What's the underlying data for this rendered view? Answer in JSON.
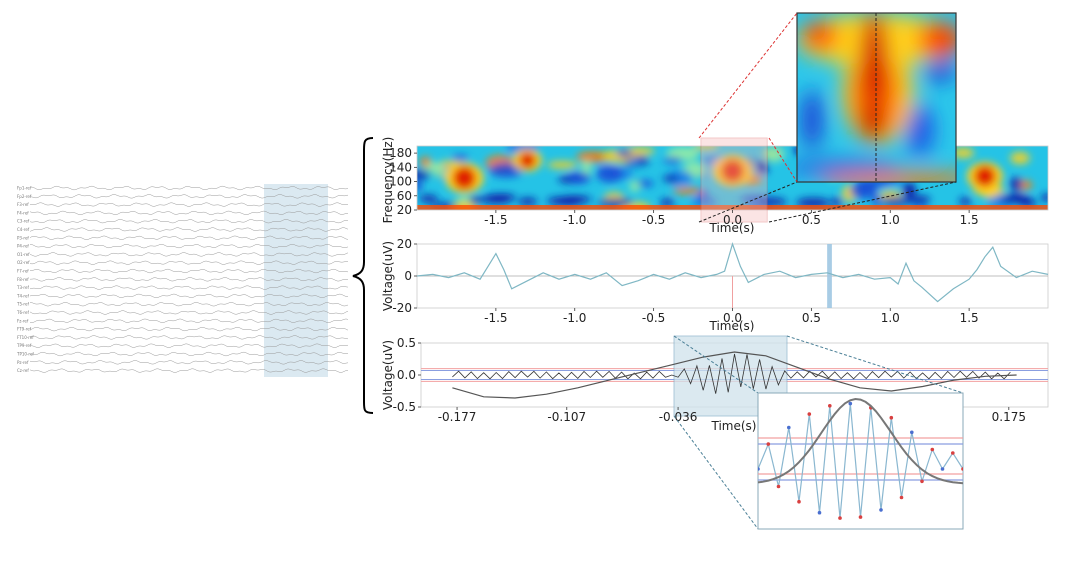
{
  "eeg_montage": {
    "channels": [
      "Fp1-ref",
      "Fp2-ref",
      "F3-ref",
      "F4-ref",
      "C3-ref",
      "C4-ref",
      "P3-ref",
      "P4-ref",
      "O1-ref",
      "O2-ref",
      "F7-ref",
      "F8-ref",
      "T3-ref",
      "T4-ref",
      "T5-ref",
      "T6-ref",
      "Fz-ref",
      "FT9-ref",
      "FT10-ref",
      "TP9-ref",
      "TP10-ref",
      "Pz-ref",
      "Cz-ref"
    ]
  },
  "chart_data": [
    {
      "type": "heatmap",
      "title": "",
      "xlabel": "Time(s)",
      "ylabel": "Frequency(Hz)",
      "xlim": [
        -2.0,
        2.0
      ],
      "ylim": [
        20,
        200
      ],
      "xticks": [
        -1.5,
        -1.0,
        -0.5,
        0.0,
        0.5,
        1.0,
        1.5
      ],
      "xtick_labels": [
        "-1.5",
        "-1.0",
        "-0.5",
        "0.0",
        "0.5",
        "1.0",
        "1.5"
      ],
      "yticks": [
        20,
        60,
        100,
        140,
        180
      ],
      "ytick_labels": [
        "20",
        "60",
        "100",
        "140",
        "180"
      ],
      "colormap": "jet",
      "hotspots": [
        {
          "t": -1.7,
          "f": 110,
          "amp": 0.95
        },
        {
          "t": 0.0,
          "f": 130,
          "amp": 1.0
        },
        {
          "t": 1.6,
          "f": 115,
          "amp": 0.85
        },
        {
          "t": -1.3,
          "f": 160,
          "amp": 0.6
        },
        {
          "t": 0.9,
          "f": 170,
          "amp": 0.55
        }
      ],
      "highlight_window": [
        -0.2,
        0.22
      ]
    },
    {
      "type": "line",
      "title": "",
      "xlabel": "Time(s)",
      "ylabel": "Voltage(uV)",
      "xlim": [
        -2.0,
        2.0
      ],
      "ylim": [
        -20,
        20
      ],
      "xticks": [
        -1.5,
        -1.0,
        -0.5,
        0.0,
        0.5,
        1.0,
        1.5
      ],
      "xtick_labels": [
        "-1.5",
        "-1.0",
        "-0.5",
        "0.0",
        "0.5",
        "1.0",
        "1.5"
      ],
      "yticks": [
        -20,
        0,
        20
      ],
      "ytick_labels": [
        "-20",
        "0",
        "20"
      ],
      "series": [
        {
          "x": [
            -2.0,
            -1.9,
            -1.8,
            -1.7,
            -1.6,
            -1.55,
            -1.5,
            -1.45,
            -1.4,
            -1.3,
            -1.2,
            -1.1,
            -1.0,
            -0.9,
            -0.8,
            -0.7,
            -0.6,
            -0.5,
            -0.4,
            -0.3,
            -0.2,
            -0.1,
            -0.05,
            0.0,
            0.05,
            0.1,
            0.2,
            0.3,
            0.4,
            0.5,
            0.6,
            0.7,
            0.8,
            0.9,
            1.0,
            1.05,
            1.1,
            1.15,
            1.2,
            1.3,
            1.4,
            1.5,
            1.55,
            1.6,
            1.65,
            1.7,
            1.8,
            1.9,
            2.0
          ],
          "values": [
            0,
            1,
            -1,
            2,
            -2,
            6,
            14,
            4,
            -8,
            -3,
            2,
            -2,
            1,
            -2,
            2,
            -6,
            -3,
            1,
            -2,
            2,
            -1,
            1,
            3,
            20,
            6,
            -4,
            1,
            3,
            -1,
            1,
            2,
            -1,
            1,
            -2,
            -1,
            -5,
            8,
            -3,
            -7,
            -16,
            -8,
            -2,
            4,
            12,
            18,
            6,
            -1,
            3,
            1
          ]
        }
      ],
      "highlight_window": [
        0.6,
        0.63
      ]
    },
    {
      "type": "line",
      "title": "",
      "xlabel": "Time(s)",
      "ylabel": "Voltage(uV)",
      "xlim": [
        -0.2,
        0.2
      ],
      "ylim": [
        -0.5,
        0.5
      ],
      "xticks": [
        -0.177,
        -0.107,
        -0.036,
        0.175
      ],
      "xtick_labels": [
        "-0.177",
        "-0.107",
        "-0.036",
        "0.175"
      ],
      "yticks": [
        -0.5,
        0.0,
        0.5
      ],
      "ytick_labels": [
        "-0.5",
        "0.0",
        "0.5"
      ],
      "series": [
        {
          "x": [
            -0.18,
            -0.16,
            -0.14,
            -0.12,
            -0.1,
            -0.08,
            -0.06,
            -0.04,
            -0.02,
            0.0,
            0.02,
            0.04,
            0.06,
            0.08,
            0.1,
            0.12,
            0.14,
            0.16,
            0.18
          ],
          "values": [
            -0.2,
            -0.34,
            -0.36,
            -0.3,
            -0.2,
            -0.08,
            0.04,
            0.16,
            0.28,
            0.36,
            0.3,
            0.12,
            -0.06,
            -0.2,
            -0.25,
            -0.18,
            -0.08,
            -0.02,
            0.0
          ]
        }
      ],
      "thresholds": [
        0.1,
        0.07,
        -0.07,
        -0.1
      ],
      "highlight_window": [
        -0.036,
        0.036
      ]
    }
  ]
}
